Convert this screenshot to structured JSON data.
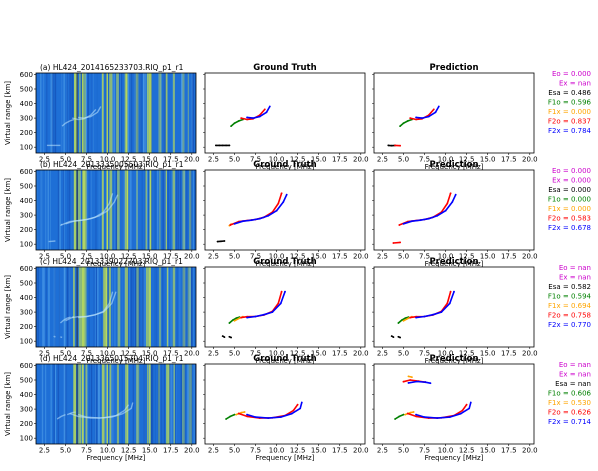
{
  "figure": {
    "colors": {
      "Eo": "#cc00cc",
      "Ex": "#cc00cc",
      "Esa": "#000000",
      "F1o": "#008000",
      "F1x": "#ffa500",
      "F2o": "#ff0000",
      "F2x": "#0000ff",
      "spec_bg": "#1e6fd6",
      "spec_line": "#d8f040"
    },
    "column_titles": [
      "Ground Truth",
      "Prediction"
    ],
    "ylabel": "Virtual range [km]",
    "xlabel": "Frequency [MHz]",
    "x_ticks": [
      "2.5",
      "5.0",
      "7.5",
      "10.0",
      "12.5",
      "15.0",
      "17.5",
      "20.0"
    ],
    "y_ticks": [
      "100",
      "200",
      "300",
      "400",
      "500",
      "600"
    ]
  },
  "chart_data": [
    {
      "type": "heatmap+scatter",
      "panel": "a",
      "title": "(a) HL424_2014165233703.RIQ_p1_r1",
      "xlim": [
        1.5,
        20.5
      ],
      "ylim": [
        60,
        610
      ],
      "scores": [
        {
          "layer": "Eo",
          "text": "Eo  = 0.000"
        },
        {
          "layer": "Ex",
          "text": "Ex  =  nan"
        },
        {
          "layer": "Esa",
          "text": "Esa = 0.486"
        },
        {
          "layer": "F1o",
          "text": "F1o = 0.596"
        },
        {
          "layer": "F1x",
          "text": "F1x = 0.000"
        },
        {
          "layer": "F2o",
          "text": "F2o = 0.837"
        },
        {
          "layer": "F2x",
          "text": "F2x = 0.784"
        }
      ],
      "truth": [
        {
          "layer": "Esa",
          "x": [
            2.8,
            3.2,
            3.6,
            4.0,
            4.4
          ],
          "y": [
            112,
            112,
            112,
            112,
            112
          ]
        },
        {
          "layer": "F1o",
          "x": [
            4.6,
            5.0,
            5.5,
            6.0
          ],
          "y": [
            245,
            265,
            280,
            290
          ]
        },
        {
          "layer": "F2o",
          "x": [
            5.8,
            6.5,
            7.2,
            8.0,
            8.6
          ],
          "y": [
            300,
            290,
            295,
            320,
            360
          ]
        },
        {
          "layer": "F2x",
          "x": [
            6.5,
            7.2,
            8.0,
            8.8,
            9.2
          ],
          "y": [
            305,
            300,
            310,
            340,
            380
          ]
        }
      ],
      "prediction": [
        {
          "layer": "Esa",
          "x": [
            3.2,
            3.6,
            4.0
          ],
          "y": [
            112,
            110,
            112
          ]
        },
        {
          "layer": "F2o",
          "x": [
            4.0,
            4.6
          ],
          "y": [
            112,
            110
          ]
        },
        {
          "layer": "F1o",
          "x": [
            4.6,
            5.0,
            5.5,
            6.0
          ],
          "y": [
            245,
            265,
            280,
            290
          ]
        },
        {
          "layer": "F2o",
          "x": [
            5.8,
            6.5,
            7.2,
            8.0,
            8.6
          ],
          "y": [
            300,
            290,
            295,
            320,
            360
          ]
        },
        {
          "layer": "F2x",
          "x": [
            6.5,
            7.2,
            8.0,
            8.8,
            9.2
          ],
          "y": [
            305,
            300,
            310,
            340,
            380
          ]
        }
      ]
    },
    {
      "type": "heatmap+scatter",
      "panel": "b",
      "title": "(b) HL424_2013335005503.RIQ_p1_r1",
      "xlim": [
        1.5,
        20.5
      ],
      "ylim": [
        60,
        610
      ],
      "scores": [
        {
          "layer": "Eo",
          "text": "Eo  = 0.000"
        },
        {
          "layer": "Ex",
          "text": "Ex  = 0.000"
        },
        {
          "layer": "Esa",
          "text": "Esa = 0.000"
        },
        {
          "layer": "F1o",
          "text": "F1o = 0.000"
        },
        {
          "layer": "F1x",
          "text": "F1x = 0.000"
        },
        {
          "layer": "F2o",
          "text": "F2o = 0.583"
        },
        {
          "layer": "F2x",
          "text": "F2x = 0.678"
        }
      ],
      "truth": [
        {
          "layer": "Esa",
          "x": [
            3.0,
            3.4,
            3.8
          ],
          "y": [
            118,
            120,
            122
          ]
        },
        {
          "layer": "F1x",
          "x": [
            4.4,
            4.6
          ],
          "y": [
            228,
            238
          ]
        },
        {
          "layer": "F2o",
          "x": [
            4.5,
            5.5,
            6.5,
            7.5,
            8.5,
            9.5,
            10.2,
            10.6
          ],
          "y": [
            232,
            255,
            262,
            270,
            285,
            320,
            380,
            450
          ]
        },
        {
          "layer": "F2x",
          "x": [
            5.0,
            6.0,
            7.0,
            8.0,
            9.0,
            10.0,
            10.8,
            11.2
          ],
          "y": [
            240,
            258,
            265,
            275,
            295,
            330,
            390,
            440
          ]
        }
      ],
      "prediction": [
        {
          "layer": "F2o",
          "x": [
            3.8,
            4.6
          ],
          "y": [
            108,
            112
          ]
        },
        {
          "layer": "F2o",
          "x": [
            4.5,
            5.5,
            6.5,
            7.5,
            8.5,
            9.5,
            10.2,
            10.6
          ],
          "y": [
            232,
            255,
            262,
            270,
            285,
            320,
            380,
            450
          ]
        },
        {
          "layer": "F2x",
          "x": [
            5.0,
            6.0,
            7.0,
            8.0,
            9.0,
            10.0,
            10.8,
            11.2
          ],
          "y": [
            240,
            258,
            265,
            275,
            295,
            330,
            390,
            440
          ]
        }
      ]
    },
    {
      "type": "heatmap+scatter",
      "panel": "c",
      "title": "(c) HL424_2013339022703.RIQ_p1_r1",
      "xlim": [
        1.5,
        20.5
      ],
      "ylim": [
        60,
        610
      ],
      "scores": [
        {
          "layer": "Eo",
          "text": "Eo  =  nan"
        },
        {
          "layer": "Ex",
          "text": "Ex  =  nan"
        },
        {
          "layer": "Esa",
          "text": "Esa = 0.582"
        },
        {
          "layer": "F1o",
          "text": "F1o = 0.594"
        },
        {
          "layer": "F1x",
          "text": "F1x = 0.694"
        },
        {
          "layer": "F2o",
          "text": "F2o = 0.758"
        },
        {
          "layer": "F2x",
          "text": "F2x = 0.770"
        }
      ],
      "truth": [
        {
          "layer": "Esa",
          "x": [
            3.6,
            3.8
          ],
          "y": [
            135,
            128
          ]
        },
        {
          "layer": "Esa",
          "x": [
            4.4,
            4.6
          ],
          "y": [
            130,
            125
          ]
        },
        {
          "layer": "F1o",
          "x": [
            4.4,
            4.8,
            5.2,
            5.6
          ],
          "y": [
            225,
            245,
            258,
            265
          ]
        },
        {
          "layer": "F1x",
          "x": [
            5.0,
            5.6,
            6.0
          ],
          "y": [
            240,
            258,
            268
          ]
        },
        {
          "layer": "F2o",
          "x": [
            5.8,
            6.5,
            7.5,
            8.5,
            9.5,
            10.2,
            10.6
          ],
          "y": [
            262,
            268,
            270,
            280,
            305,
            360,
            440
          ]
        },
        {
          "layer": "F2x",
          "x": [
            6.5,
            7.5,
            8.5,
            9.5,
            10.5,
            11.0
          ],
          "y": [
            262,
            270,
            282,
            300,
            360,
            440
          ]
        }
      ],
      "prediction": [
        {
          "layer": "Esa",
          "x": [
            3.6,
            3.8
          ],
          "y": [
            135,
            128
          ]
        },
        {
          "layer": "Esa",
          "x": [
            4.4,
            4.6
          ],
          "y": [
            130,
            125
          ]
        },
        {
          "layer": "F1o",
          "x": [
            4.4,
            4.8,
            5.2,
            5.6
          ],
          "y": [
            225,
            245,
            258,
            265
          ]
        },
        {
          "layer": "F1x",
          "x": [
            5.0,
            5.6,
            6.0
          ],
          "y": [
            240,
            258,
            268
          ]
        },
        {
          "layer": "F2o",
          "x": [
            5.8,
            6.5,
            7.5,
            8.5,
            9.5,
            10.2,
            10.6
          ],
          "y": [
            262,
            268,
            270,
            280,
            305,
            360,
            440
          ]
        },
        {
          "layer": "F2x",
          "x": [
            6.5,
            7.5,
            8.5,
            9.5,
            10.5,
            11.0
          ],
          "y": [
            262,
            270,
            282,
            300,
            360,
            440
          ]
        }
      ]
    },
    {
      "type": "heatmap+scatter",
      "panel": "d",
      "title": "(d) HL424_2013365015704.RIQ_p1_r1",
      "xlim": [
        1.5,
        20.5
      ],
      "ylim": [
        60,
        610
      ],
      "scores": [
        {
          "layer": "Eo",
          "text": "Eo  =  nan"
        },
        {
          "layer": "Ex",
          "text": "Ex  =  nan"
        },
        {
          "layer": "Esa",
          "text": "Esa =  nan"
        },
        {
          "layer": "F1o",
          "text": "F1o = 0.606"
        },
        {
          "layer": "F1x",
          "text": "F1x = 0.530"
        },
        {
          "layer": "F2o",
          "text": "F2o = 0.626"
        },
        {
          "layer": "F2x",
          "text": "F2x = 0.714"
        }
      ],
      "truth": [
        {
          "layer": "F1o",
          "x": [
            4.0,
            4.5,
            5.0
          ],
          "y": [
            232,
            250,
            262
          ]
        },
        {
          "layer": "F1x",
          "x": [
            5.2,
            5.8,
            6.2
          ],
          "y": [
            262,
            275,
            280
          ]
        },
        {
          "layer": "F2o",
          "x": [
            5.5,
            6.5,
            8.0,
            9.5,
            11.0,
            12.0,
            12.5
          ],
          "y": [
            270,
            250,
            238,
            240,
            255,
            290,
            330
          ]
        },
        {
          "layer": "F2x",
          "x": [
            6.5,
            7.5,
            9.0,
            10.5,
            11.8,
            12.8,
            13.0
          ],
          "y": [
            262,
            245,
            238,
            245,
            268,
            305,
            345
          ]
        }
      ],
      "prediction": [
        {
          "layer": "F1x",
          "x": [
            5.6,
            6.0
          ],
          "y": [
            525,
            520
          ]
        },
        {
          "layer": "F2o",
          "x": [
            5.0,
            5.8,
            6.8,
            7.6
          ],
          "y": [
            488,
            500,
            492,
            485
          ]
        },
        {
          "layer": "F2x",
          "x": [
            5.6,
            6.6,
            7.6,
            8.2
          ],
          "y": [
            480,
            490,
            485,
            478
          ]
        },
        {
          "layer": "F1o",
          "x": [
            4.0,
            4.5,
            5.0
          ],
          "y": [
            232,
            250,
            262
          ]
        },
        {
          "layer": "F1x",
          "x": [
            5.2,
            5.8,
            6.2
          ],
          "y": [
            262,
            275,
            280
          ]
        },
        {
          "layer": "F2o",
          "x": [
            5.5,
            6.5,
            8.0,
            9.5,
            11.0,
            12.0,
            12.5
          ],
          "y": [
            270,
            250,
            238,
            240,
            255,
            290,
            330
          ]
        },
        {
          "layer": "F2x",
          "x": [
            6.5,
            7.5,
            9.0,
            10.5,
            11.8,
            12.8,
            13.0
          ],
          "y": [
            262,
            245,
            238,
            245,
            268,
            305,
            345
          ]
        }
      ]
    }
  ]
}
